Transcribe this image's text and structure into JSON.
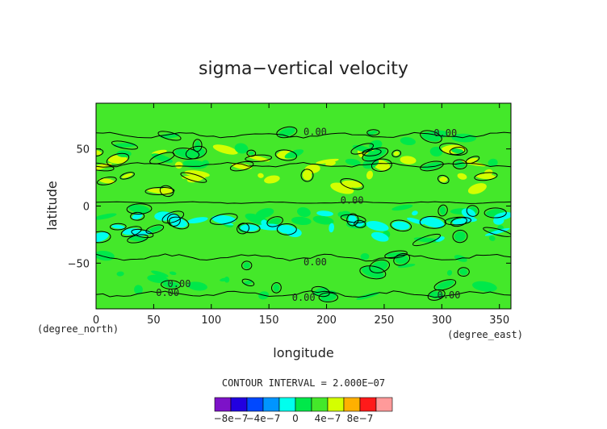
{
  "chart_data": {
    "type": "heatmap",
    "title": "sigma−vertical velocity",
    "xlabel": "longitude",
    "ylabel": "latitude",
    "x_unit": "(degree_east)",
    "y_unit": "(degree_north)",
    "xlim": [
      0,
      360
    ],
    "ylim": [
      -90,
      90
    ],
    "x_ticks": [
      "0",
      "50",
      "100",
      "150",
      "200",
      "250",
      "300",
      "350"
    ],
    "y_ticks": [
      "50",
      "0",
      "−50"
    ],
    "grid": false,
    "contour_interval_text": "CONTOUR INTERVAL = 2.000E−07",
    "contour_labels": [
      {
        "text": "0.00",
        "lon": 180,
        "lat": 65
      },
      {
        "text": "0.00",
        "lon": 293,
        "lat": 64
      },
      {
        "text": "0.00",
        "lon": 212,
        "lat": 5
      },
      {
        "text": "0.00",
        "lon": 180,
        "lat": -49
      },
      {
        "text": "0.00",
        "lon": 62,
        "lat": -68
      },
      {
        "text": "0.00",
        "lon": 52,
        "lat": -76
      },
      {
        "text": "0.00",
        "lon": 170,
        "lat": -80
      },
      {
        "text": "0.00",
        "lon": 296,
        "lat": -78
      }
    ],
    "colorbar": {
      "colors": [
        "#7d12c8",
        "#2200e0",
        "#0048ff",
        "#0095ff",
        "#00ffee",
        "#00e84a",
        "#44e82a",
        "#d4ff00",
        "#ffb000",
        "#ff1a1a",
        "#ff9a9a"
      ],
      "tick_labels": [
        "−8e−7",
        "−4e−7",
        "0",
        "4e−7",
        "8e−7"
      ],
      "tick_values": [
        -8e-07,
        -4e-07,
        0,
        4e-07,
        8e-07
      ],
      "range": [
        -1e-06,
        1.2e-06
      ]
    },
    "field": {
      "background_level": "0 to 2e-7",
      "background_color": "#44e82a",
      "bands": [
        {
          "level": "2e-7 to 4e-7",
          "color": "#d4ff00",
          "lat_range": [
            10,
            50
          ],
          "description": "patchy positive values in northern mid-latitudes"
        },
        {
          "level": "-2e-7 to 0",
          "color": "#00e84a",
          "lat_range": [
            -30,
            0
          ],
          "description": "negative band just south of the equator"
        },
        {
          "level": "-4e-7 to -2e-7",
          "color": "#00ffee",
          "lat_range": [
            -30,
            -5
          ],
          "description": "scattered strong negative cells"
        },
        {
          "level": "-2e-7 to 0",
          "color": "#00e84a",
          "lat_range": [
            -80,
            -40
          ],
          "description": "southern mid-latitude negative patches"
        },
        {
          "level": "-2e-7 to 0",
          "color": "#00e84a",
          "lat_range": [
            35,
            65
          ],
          "description": "northern mid-latitude negative band"
        }
      ]
    }
  }
}
